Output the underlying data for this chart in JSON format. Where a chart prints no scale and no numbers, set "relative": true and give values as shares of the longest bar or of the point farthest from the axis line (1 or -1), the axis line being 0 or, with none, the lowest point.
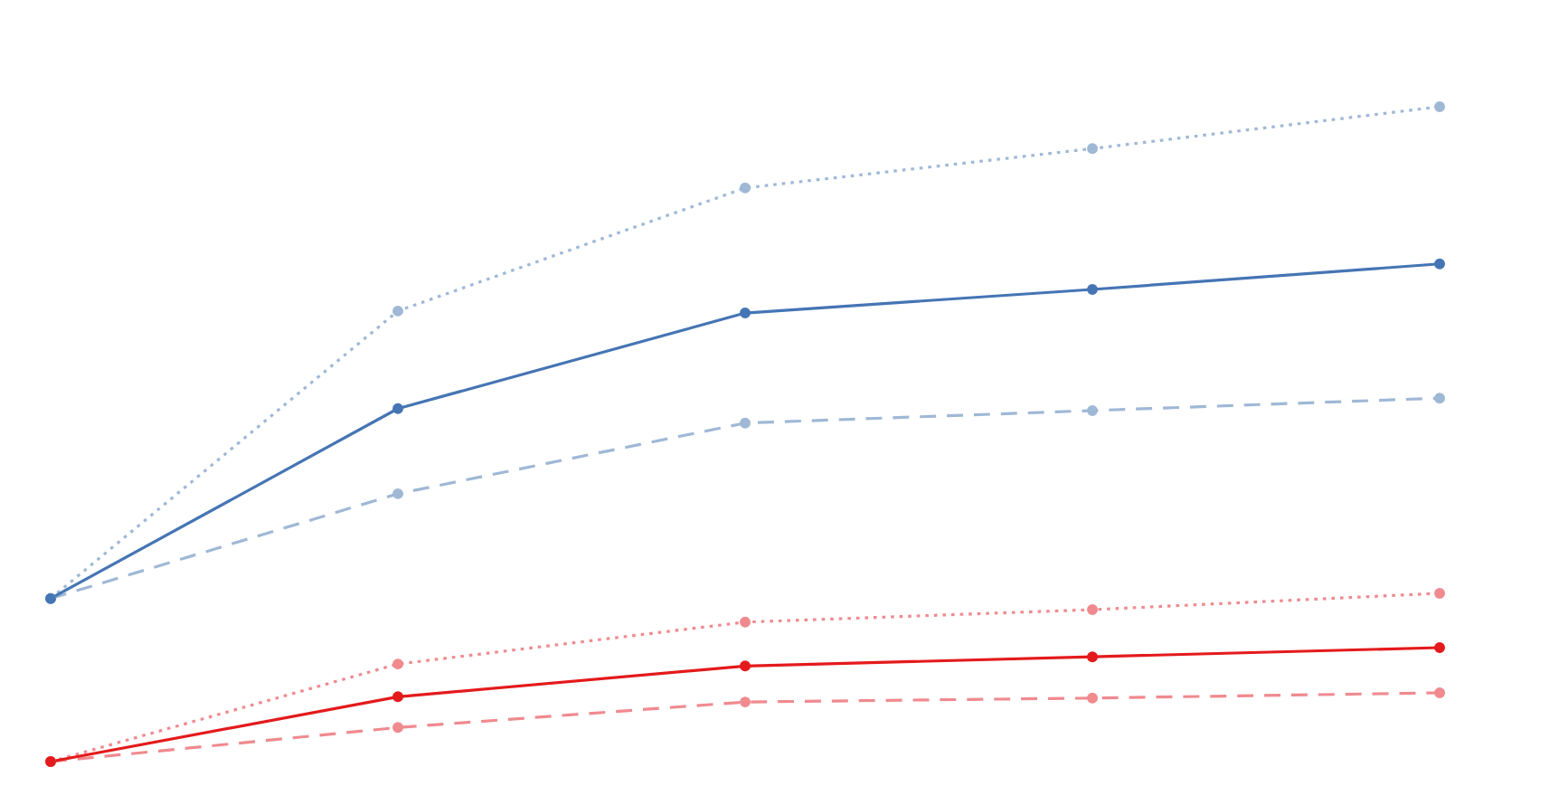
{
  "chart_data": {
    "type": "line",
    "relative": true,
    "marker": "circle",
    "categories": [
      null,
      null,
      null,
      null,
      null
    ],
    "series": [
      {
        "color": "#9fb8d6",
        "line_style": "dotted",
        "values": [
          0.249,
          0.688,
          0.876,
          0.936,
          1
        ]
      },
      {
        "color": "#4575b4",
        "line_style": "solid",
        "values": [
          0.249,
          0.539,
          0.685,
          0.721,
          0.76
        ]
      },
      {
        "color": "#9fb8d6",
        "line_style": "dashed",
        "values": [
          0.249,
          0.409,
          0.517,
          0.536,
          0.555
        ]
      },
      {
        "color": "#f08a8f",
        "line_style": "dotted",
        "values": [
          0,
          0.149,
          0.213,
          0.232,
          0.257
        ]
      },
      {
        "color": "#e41a1c",
        "line_style": "solid",
        "values": [
          0,
          0.099,
          0.146,
          0.16,
          0.174
        ]
      },
      {
        "color": "#f08a8f",
        "line_style": "dashed",
        "values": [
          0,
          0.052,
          0.091,
          0.097,
          0.105
        ]
      }
    ]
  }
}
